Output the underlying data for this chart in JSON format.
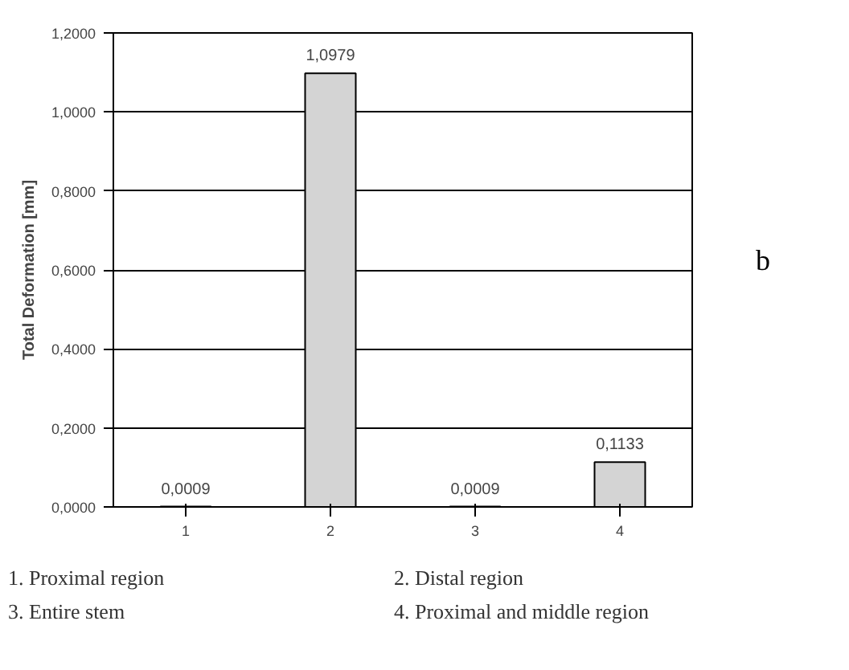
{
  "chart_data": {
    "type": "bar",
    "ylabel": "Total Deformation [mm]",
    "categories": [
      "1",
      "2",
      "3",
      "4"
    ],
    "values": [
      0.0009,
      1.0979,
      0.0009,
      0.1133
    ],
    "value_labels": [
      "0,0009",
      "1,0979",
      "0,0009",
      "0,1133"
    ],
    "color": "#d4d4d4",
    "ylim": [
      0,
      1.2
    ],
    "yticks": [
      {
        "value": 0,
        "label": "0,0000"
      },
      {
        "value": 0.2,
        "label": "0,2000"
      },
      {
        "value": 0.4,
        "label": "0,4000"
      },
      {
        "value": 0.6,
        "label": "0,6000"
      },
      {
        "value": 0.8,
        "label": "0,8000"
      },
      {
        "value": 1.0,
        "label": "1,0000"
      },
      {
        "value": 1.2,
        "label": "1,2000"
      }
    ],
    "grid": "y",
    "annotations": [
      "1. Proximal region",
      "2. Distal region",
      "3. Entire stem",
      "4. Proximal and middle region",
      "b"
    ]
  }
}
